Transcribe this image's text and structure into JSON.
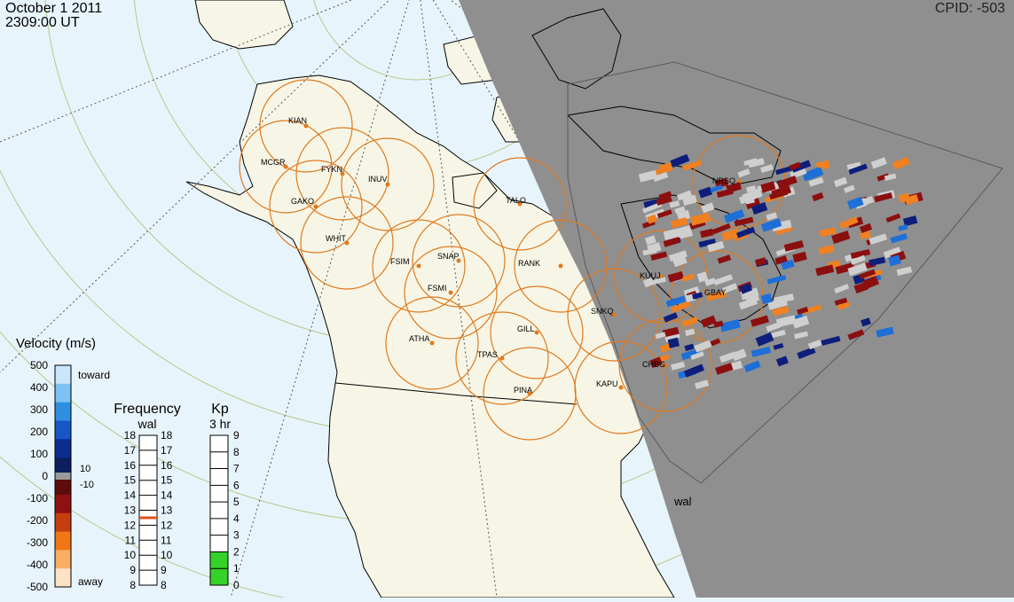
{
  "header": {
    "date": "October  1 2011",
    "time": "2309:00 UT",
    "cpid": "CPID:  -503"
  },
  "sites": [
    {
      "code": "KIAN"
    },
    {
      "code": "MCGR"
    },
    {
      "code": "FYKN"
    },
    {
      "code": "INUV"
    },
    {
      "code": "GAKO"
    },
    {
      "code": "WHIT"
    },
    {
      "code": "FSIM"
    },
    {
      "code": "SNAP"
    },
    {
      "code": "FSMI"
    },
    {
      "code": "TALO"
    },
    {
      "code": "RANK"
    },
    {
      "code": "ATHA"
    },
    {
      "code": "GILL"
    },
    {
      "code": "TPAS"
    },
    {
      "code": "PINA"
    },
    {
      "code": "SNKQ"
    },
    {
      "code": "KUUJ"
    },
    {
      "code": "GBAY"
    },
    {
      "code": "CHBG"
    },
    {
      "code": "KAPU"
    },
    {
      "code": "NRSQ"
    }
  ],
  "radar_label": "wal",
  "colors": {
    "ocean": "#e8f4fb",
    "land": "#f7f6e6",
    "night": "#8f8f8f",
    "fov_ring": "#e07a1f",
    "low_velocity": "#cfcfcf"
  },
  "velocity_scale": {
    "title": "Velocity (m/s)",
    "toward": "toward",
    "away": "away",
    "labels": [
      "500",
      "400",
      "300",
      "200",
      "100",
      "0",
      "-100",
      "-200",
      "-300",
      "-400",
      "-500"
    ],
    "marks": [
      "10",
      "-10"
    ]
  },
  "frequency_scale": {
    "title": "Frequency",
    "subtitle": "wal",
    "labels": [
      "18",
      "17",
      "16",
      "15",
      "14",
      "13",
      "12",
      "11",
      "10",
      "9",
      "8"
    ],
    "current": 13
  },
  "kp_scale": {
    "title": "Kp",
    "subtitle": "3 hr",
    "labels": [
      "9",
      "8",
      "7",
      "6",
      "5",
      "4",
      "3",
      "2",
      "1",
      "0"
    ],
    "value": 2
  }
}
